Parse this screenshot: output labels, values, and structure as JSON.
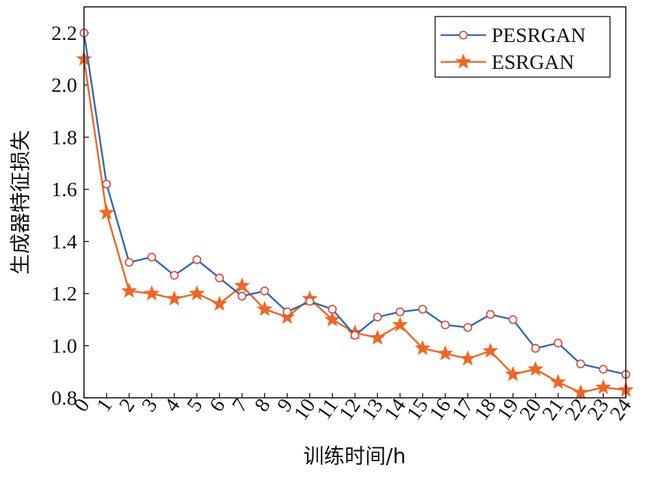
{
  "chart_data": {
    "type": "line",
    "xlabel": "训练时间/h",
    "ylabel": "生成器特征损失",
    "x": [
      0,
      1,
      2,
      3,
      4,
      5,
      6,
      7,
      8,
      9,
      10,
      11,
      12,
      13,
      14,
      15,
      16,
      17,
      18,
      19,
      20,
      21,
      22,
      23,
      24
    ],
    "xlim": [
      0,
      24
    ],
    "ylim": [
      0.8,
      2.3
    ],
    "yticks": [
      0.8,
      1.0,
      1.2,
      1.4,
      1.6,
      1.8,
      2.0,
      2.2
    ],
    "ytick_labels": [
      "0.8",
      "1.0",
      "1.2",
      "1.4",
      "1.6",
      "1.8",
      "2.0",
      "2.2"
    ],
    "xtick_labels": [
      "0",
      "1",
      "2",
      "3",
      "4",
      "5",
      "6",
      "7",
      "8",
      "9",
      "10",
      "11",
      "12",
      "13",
      "14",
      "15",
      "16",
      "17",
      "18",
      "19",
      "20",
      "21",
      "22",
      "23",
      "24"
    ],
    "grid": false,
    "legend_position": "top-right",
    "series": [
      {
        "name": "PESRGAN",
        "color": "#2f6db5",
        "marker": "circle",
        "marker_color": "#e0483d",
        "values": [
          2.2,
          1.62,
          1.32,
          1.34,
          1.27,
          1.33,
          1.26,
          1.19,
          1.21,
          1.13,
          1.17,
          1.14,
          1.04,
          1.11,
          1.13,
          1.14,
          1.08,
          1.07,
          1.12,
          1.1,
          0.99,
          1.01,
          0.93,
          0.91,
          0.89
        ]
      },
      {
        "name": "ESRGAN",
        "color": "#f26522",
        "marker": "star",
        "marker_color": "#f26522",
        "values": [
          2.1,
          1.51,
          1.21,
          1.2,
          1.18,
          1.2,
          1.16,
          1.23,
          1.14,
          1.11,
          1.18,
          1.1,
          1.05,
          1.03,
          1.08,
          0.99,
          0.97,
          0.95,
          0.98,
          0.89,
          0.91,
          0.86,
          0.82,
          0.84,
          0.83
        ]
      }
    ]
  }
}
